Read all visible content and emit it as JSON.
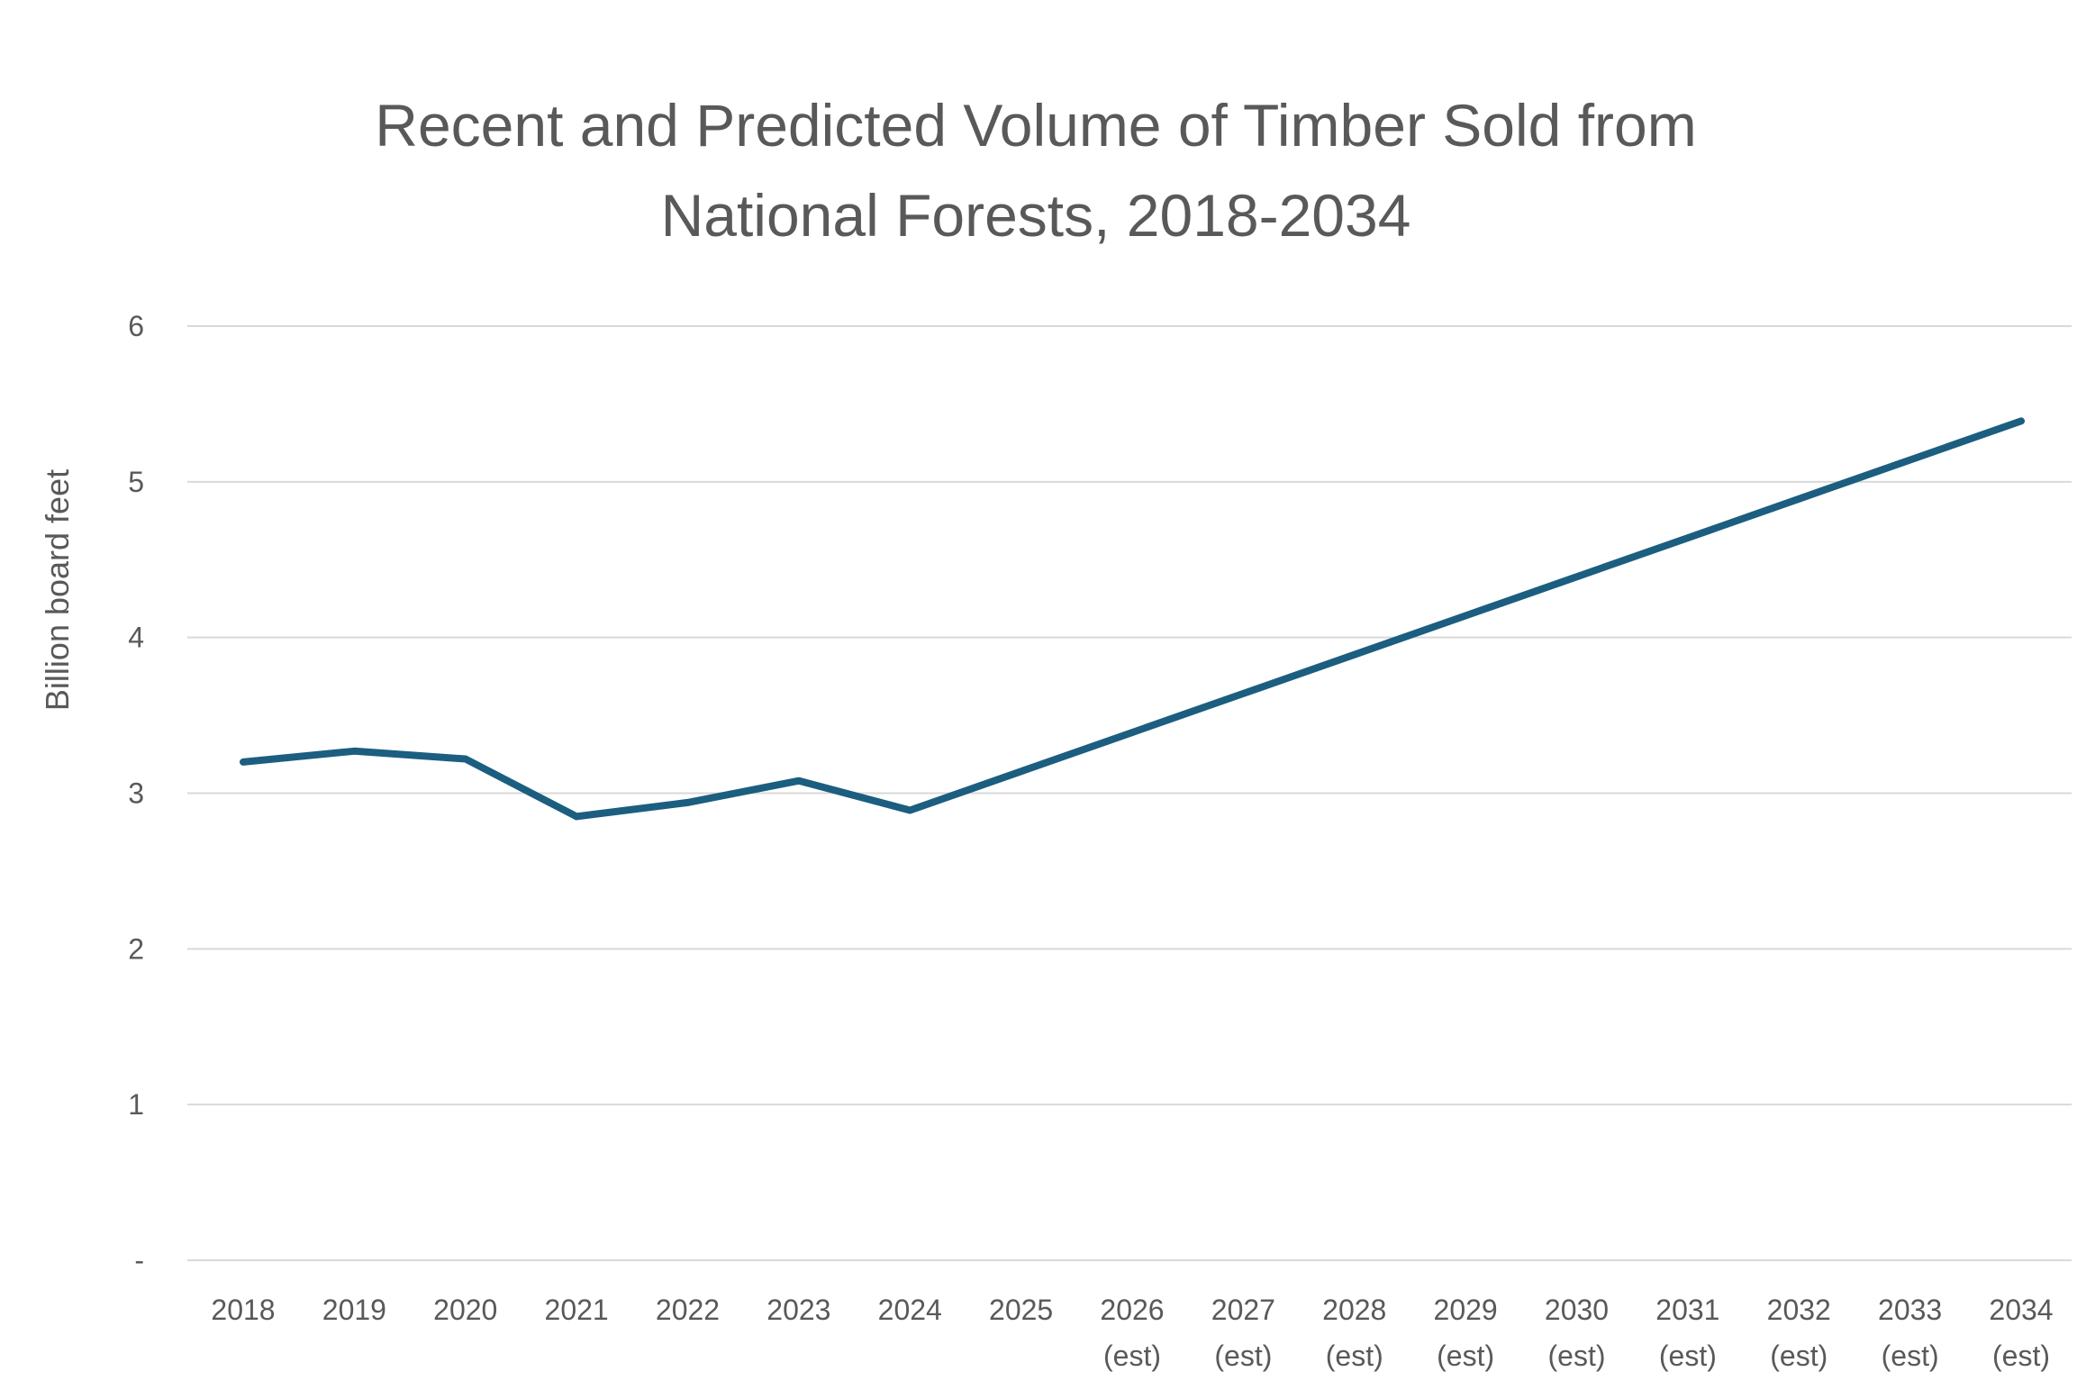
{
  "chart_data": {
    "type": "line",
    "title_lines": [
      "Recent and Predicted Volume of Timber Sold from",
      "National Forests, 2018-2034"
    ],
    "ylabel": "Billion board feet",
    "xlabel": "",
    "ylim": [
      0,
      6
    ],
    "yticks": [
      {
        "value": 0,
        "label": "-"
      },
      {
        "value": 1,
        "label": "1"
      },
      {
        "value": 2,
        "label": "2"
      },
      {
        "value": 3,
        "label": "3"
      },
      {
        "value": 4,
        "label": "4"
      },
      {
        "value": 5,
        "label": "5"
      },
      {
        "value": 6,
        "label": "6"
      }
    ],
    "categories": [
      {
        "year": "2018",
        "note": ""
      },
      {
        "year": "2019",
        "note": ""
      },
      {
        "year": "2020",
        "note": ""
      },
      {
        "year": "2021",
        "note": ""
      },
      {
        "year": "2022",
        "note": ""
      },
      {
        "year": "2023",
        "note": ""
      },
      {
        "year": "2024",
        "note": ""
      },
      {
        "year": "2025",
        "note": ""
      },
      {
        "year": "2026",
        "note": "(est)"
      },
      {
        "year": "2027",
        "note": "(est)"
      },
      {
        "year": "2028",
        "note": "(est)"
      },
      {
        "year": "2029",
        "note": "(est)"
      },
      {
        "year": "2030",
        "note": "(est)"
      },
      {
        "year": "2031",
        "note": "(est)"
      },
      {
        "year": "2032",
        "note": "(est)"
      },
      {
        "year": "2033",
        "note": "(est)"
      },
      {
        "year": "2034",
        "note": "(est)"
      }
    ],
    "series": [
      {
        "color": "#1b5e80",
        "values": [
          3.2,
          3.27,
          3.22,
          2.85,
          2.94,
          3.08,
          2.89,
          3.14,
          3.39,
          3.64,
          3.89,
          4.14,
          4.39,
          4.64,
          4.89,
          5.14,
          5.39
        ]
      }
    ],
    "grid": true,
    "legend": "none"
  }
}
